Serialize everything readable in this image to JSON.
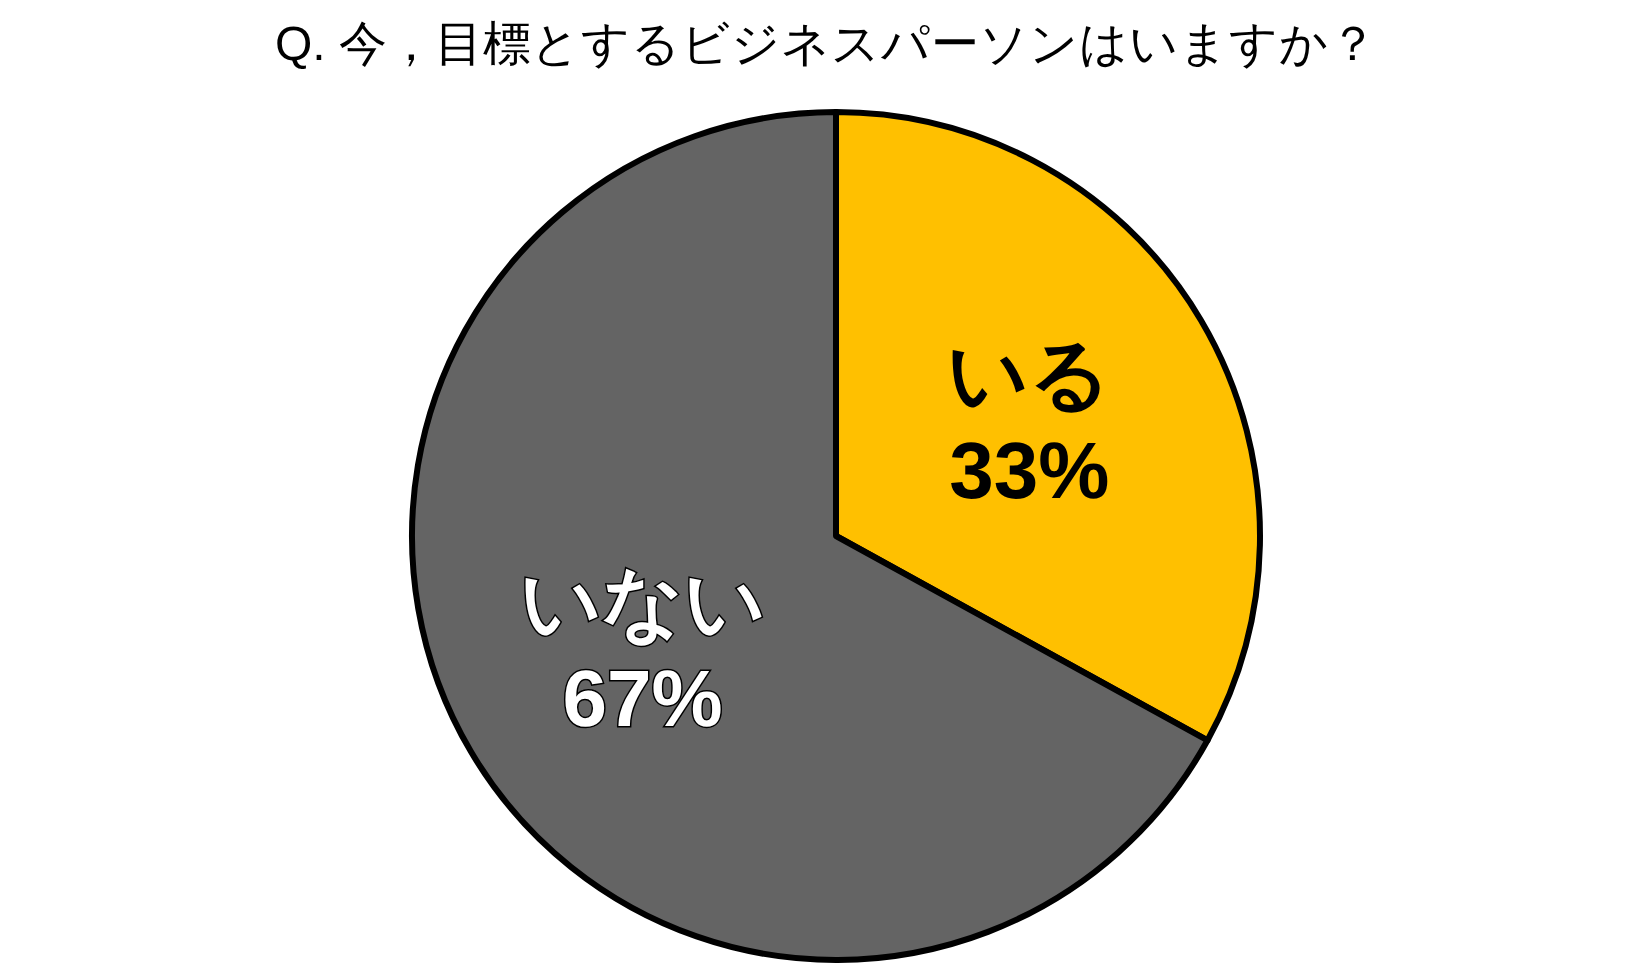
{
  "chart_data": {
    "type": "pie",
    "title": "Q. 今，目標とするビジネスパーソンはいますか？",
    "categories": [
      "いる",
      "いない"
    ],
    "values": [
      33,
      67
    ],
    "colors": [
      "#ffc000",
      "#646464"
    ],
    "value_labels": [
      "33%",
      "67%"
    ]
  }
}
